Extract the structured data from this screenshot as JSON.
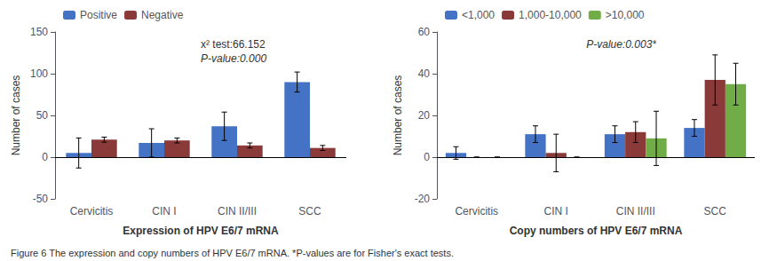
{
  "caption": "Figure 6 The expression and copy numbers of HPV E6/7 mRNA. *P-values are for Fisher's exact tests.",
  "chart_data": [
    {
      "type": "bar",
      "categories": [
        "Cervicitis",
        "CIN I",
        "CIN II/III",
        "SCC"
      ],
      "series": [
        {
          "name": "Positive",
          "color": "#4472C4",
          "values": [
            5,
            17,
            37,
            90
          ],
          "errors": [
            18,
            17,
            17,
            12
          ]
        },
        {
          "name": "Negative",
          "color": "#8B3A3A",
          "values": [
            21,
            20,
            14,
            11
          ],
          "errors": [
            3,
            3,
            3,
            3
          ]
        }
      ],
      "xlabel": "Expression of HPV E6/7 mRNA",
      "ylabel": "Number of cases",
      "ylim": [
        -50,
        150
      ],
      "yticks": [
        -50,
        0,
        50,
        100,
        150
      ],
      "annotations": [
        "x² test:66.152",
        "P-value:0.000"
      ],
      "legend": "upper left",
      "grid": false
    },
    {
      "type": "bar",
      "categories": [
        "Cervicitis",
        "CIN I",
        "CIN II/III",
        "SCC"
      ],
      "series": [
        {
          "name": "<1,000",
          "color": "#4472C4",
          "values": [
            2,
            11,
            11,
            14
          ],
          "errors": [
            3,
            4,
            4,
            4
          ]
        },
        {
          "name": "1,000-10,000",
          "color": "#8B3A3A",
          "values": [
            0,
            2,
            12,
            37
          ],
          "errors": [
            0,
            9,
            5,
            12
          ]
        },
        {
          "name": ">10,000",
          "color": "#70AD47",
          "values": [
            0,
            0,
            9,
            35
          ],
          "errors": [
            0,
            0,
            13,
            10
          ]
        }
      ],
      "xlabel": "Copy numbers of HPV E6/7 mRNA",
      "ylabel": "Number of cases",
      "ylim": [
        -20,
        60
      ],
      "yticks": [
        -20,
        0,
        20,
        40,
        60
      ],
      "annotations": [
        "P-value:0.003*"
      ],
      "legend": "upper left",
      "grid": false
    }
  ]
}
